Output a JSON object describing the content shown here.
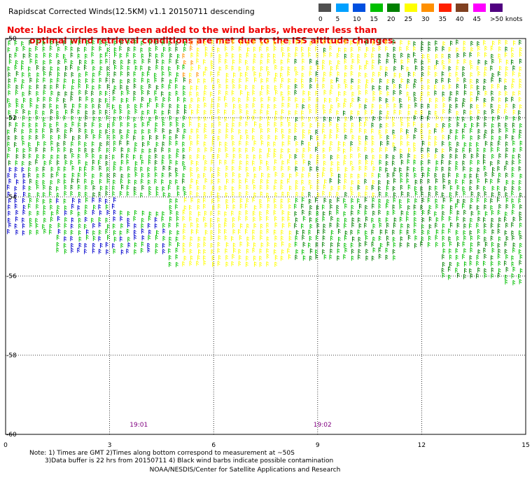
{
  "title": "Rapidscat Corrected Winds(12.5KM) v1.1 20150711 descending",
  "note_red": {
    "line1": "Note: black circles have been added to the wind barbs, wherever less than",
    "line2": "optimal wind retrieval conditions are met due to the ISS altitude changes."
  },
  "legend": {
    "items": [
      {
        "label": "0",
        "color": "#505050"
      },
      {
        "label": "5",
        "color": "#00a0ff"
      },
      {
        "label": "10",
        "color": "#0050e0"
      },
      {
        "label": "15",
        "color": "#00c000"
      },
      {
        "label": "20",
        "color": "#008000"
      },
      {
        "label": "25",
        "color": "#ffff00"
      },
      {
        "label": "30",
        "color": "#ff9000"
      },
      {
        "label": "35",
        "color": "#ff2000"
      },
      {
        "label": "40",
        "color": "#804020"
      },
      {
        "label": "45",
        "color": "#ff00ff"
      },
      {
        "label": ">50 knots",
        "color": "#500080"
      }
    ]
  },
  "axes": {
    "y_labels": [
      "-50",
      "-52",
      "-54",
      "-56",
      "-58",
      "-60"
    ],
    "x_labels": [
      "0",
      "3",
      "6",
      "9",
      "12",
      "15"
    ],
    "lat_range": [
      -60,
      -50
    ],
    "lon_range": [
      0,
      15
    ]
  },
  "times": [
    {
      "label": "19:01",
      "lon": 3.8
    },
    {
      "label": "19:02",
      "lon": 9.1
    }
  ],
  "footnotes": {
    "line1": "Note: 1) Times are GMT 2)Times along bottom correspond to measurement at ~50S",
    "line2": "3)Data buffer is 22 hrs from 20150711 4) Black wind barbs indicate possible contamination"
  },
  "credit": "NOAA/NESDIS/Center for Satellite Applications and Research",
  "colors": {
    "green": "#008000",
    "lightgreen": "#00c000",
    "yellow": "#ffff00",
    "blue": "#0000cc",
    "orange": "#ff9000"
  }
}
